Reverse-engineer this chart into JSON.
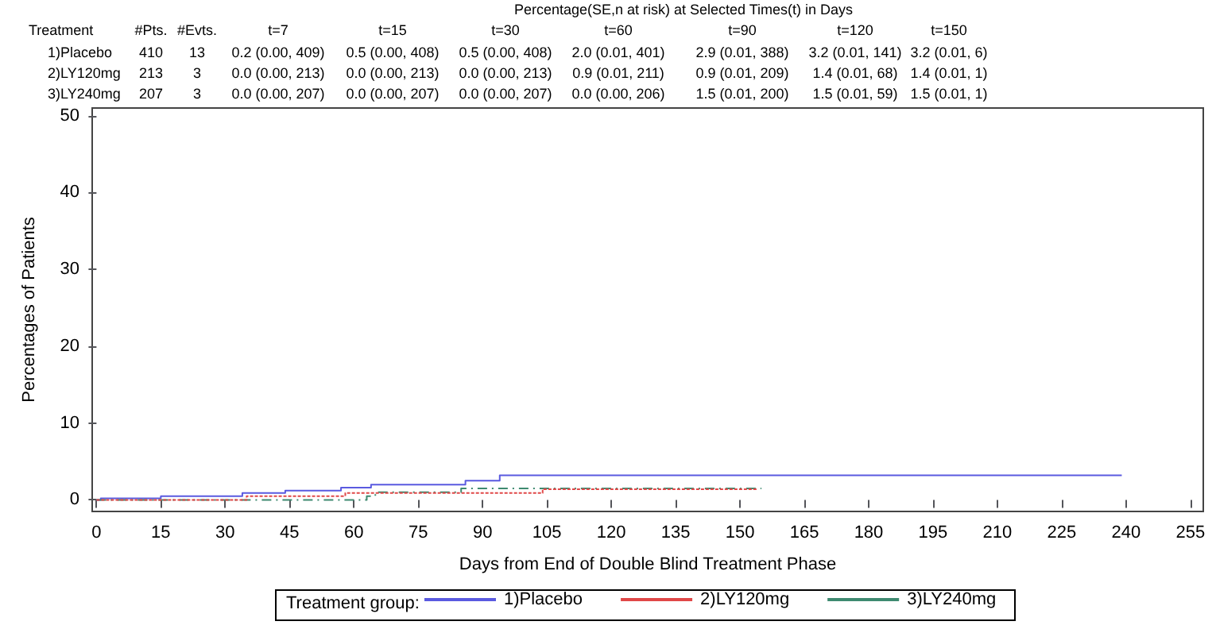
{
  "chart_data": {
    "type": "step",
    "xlabel": "Days from End of Double Blind Treatment Phase",
    "ylabel": "Percentages of Patients",
    "legend_title": "Treatment group:",
    "legend": "bottom",
    "grid": false,
    "marker": "none",
    "xlim": [
      -1,
      258
    ],
    "xticks": [
      0,
      15,
      30,
      45,
      60,
      75,
      90,
      105,
      120,
      135,
      150,
      165,
      180,
      195,
      210,
      225,
      240,
      255
    ],
    "ylim": [
      -1.5,
      51
    ],
    "yticks": [
      0,
      10,
      20,
      30,
      40,
      50
    ],
    "series": [
      {
        "name": "1)Placebo",
        "color": "#5a5ae0",
        "line_style": "solid",
        "x": [
          0,
          1,
          15,
          34,
          44,
          57,
          64,
          86,
          94,
          239
        ],
        "values": [
          0,
          0.2,
          0.5,
          0.9,
          1.2,
          1.6,
          2.0,
          2.5,
          3.2,
          3.2
        ]
      },
      {
        "name": "2)LY120mg",
        "color": "#e04848",
        "line_style": "dashed",
        "x": [
          0,
          35,
          58,
          104,
          154
        ],
        "values": [
          0,
          0.5,
          0.9,
          1.4,
          1.4
        ]
      },
      {
        "name": "3)LY240mg",
        "color": "#3e8a70",
        "line_style": "dotted",
        "x": [
          0,
          63,
          65,
          85,
          155
        ],
        "values": [
          0,
          0.5,
          1.0,
          1.5,
          1.5
        ]
      }
    ],
    "annotations": [
      "Percentage(SE,n at risk) at Selected Times(t) in Days",
      "Treatment",
      "#Pts.",
      "#Evts.",
      "t=7",
      "t=15",
      "t=30",
      "t=60",
      "t=90",
      "t=120",
      "t=150",
      "1)Placebo",
      "410",
      "13",
      "0.2 (0.00, 409)",
      "0.5 (0.00, 408)",
      "0.5 (0.00, 408)",
      "2.0 (0.01, 401)",
      "2.9 (0.01, 388)",
      "3.2 (0.01, 141)",
      "3.2 (0.01, 6)",
      "2)LY120mg",
      "213",
      "3",
      "0.0 (0.00, 213)",
      "0.0 (0.00, 213)",
      "0.0 (0.00, 213)",
      "0.9 (0.01, 211)",
      "0.9 (0.01, 209)",
      "1.4 (0.01, 68)",
      "1.4 (0.01, 1)",
      "3)LY240mg",
      "207",
      "3",
      "0.0 (0.00, 207)",
      "0.0 (0.00, 207)",
      "0.0 (0.00, 207)",
      "0.0 (0.00, 206)",
      "1.5 (0.01, 200)",
      "1.5 (0.01, 59)",
      "1.5 (0.01, 1)"
    ]
  }
}
